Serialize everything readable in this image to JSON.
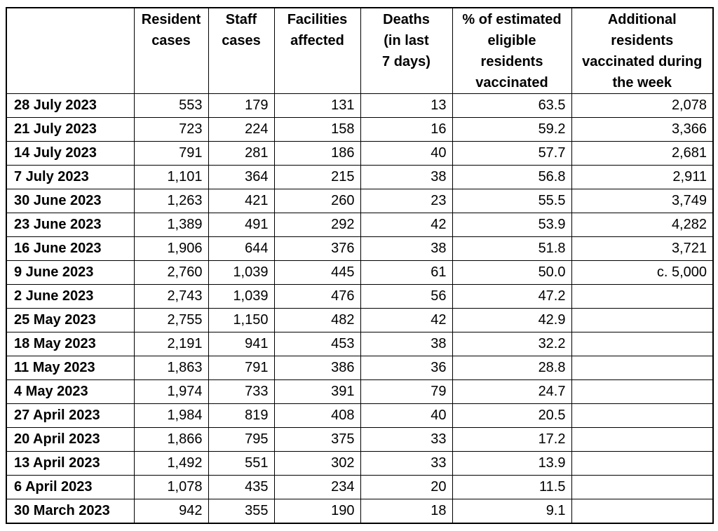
{
  "table": {
    "columns": [
      "",
      "Resident\ncases",
      "Staff\ncases",
      "Facilities\naffected",
      "Deaths\n(in last\n7 days)",
      "% of estimated\neligible\nresidents\nvaccinated",
      "Additional\nresidents\nvaccinated during\nthe week"
    ],
    "rows": [
      {
        "date": "28 July 2023",
        "values": [
          "553",
          "179",
          "131",
          "13",
          "63.5",
          "2,078"
        ]
      },
      {
        "date": "21 July 2023",
        "values": [
          "723",
          "224",
          "158",
          "16",
          "59.2",
          "3,366"
        ]
      },
      {
        "date": "14 July 2023",
        "values": [
          "791",
          "281",
          "186",
          "40",
          "57.7",
          "2,681"
        ]
      },
      {
        "date": "7 July 2023",
        "values": [
          "1,101",
          "364",
          "215",
          "38",
          "56.8",
          "2,911"
        ]
      },
      {
        "date": "30 June 2023",
        "values": [
          "1,263",
          "421",
          "260",
          "23",
          "55.5",
          "3,749"
        ]
      },
      {
        "date": "23 June 2023",
        "values": [
          "1,389",
          "491",
          "292",
          "42",
          "53.9",
          "4,282"
        ]
      },
      {
        "date": "16 June 2023",
        "values": [
          "1,906",
          "644",
          "376",
          "38",
          "51.8",
          "3,721"
        ]
      },
      {
        "date": "9 June 2023",
        "values": [
          "2,760",
          "1,039",
          "445",
          "61",
          "50.0",
          "c. 5,000"
        ]
      },
      {
        "date": "2 June 2023",
        "values": [
          "2,743",
          "1,039",
          "476",
          "56",
          "47.2",
          ""
        ]
      },
      {
        "date": "25 May 2023",
        "values": [
          "2,755",
          "1,150",
          "482",
          "42",
          "42.9",
          ""
        ]
      },
      {
        "date": "18 May 2023",
        "values": [
          "2,191",
          "941",
          "453",
          "38",
          "32.2",
          ""
        ]
      },
      {
        "date": "11 May 2023",
        "values": [
          "1,863",
          "791",
          "386",
          "36",
          "28.8",
          ""
        ]
      },
      {
        "date": "4 May 2023",
        "values": [
          "1,974",
          "733",
          "391",
          "79",
          "24.7",
          ""
        ]
      },
      {
        "date": "27 April 2023",
        "values": [
          "1,984",
          "819",
          "408",
          "40",
          "20.5",
          ""
        ]
      },
      {
        "date": "20 April 2023",
        "values": [
          "1,866",
          "795",
          "375",
          "33",
          "17.2",
          ""
        ]
      },
      {
        "date": "13 April 2023",
        "values": [
          "1,492",
          "551",
          "302",
          "33",
          "13.9",
          ""
        ]
      },
      {
        "date": "6 April 2023",
        "values": [
          "1,078",
          "435",
          "234",
          "20",
          "11.5",
          ""
        ]
      },
      {
        "date": "30 March 2023",
        "values": [
          "942",
          "355",
          "190",
          "18",
          "9.1",
          ""
        ]
      }
    ]
  }
}
